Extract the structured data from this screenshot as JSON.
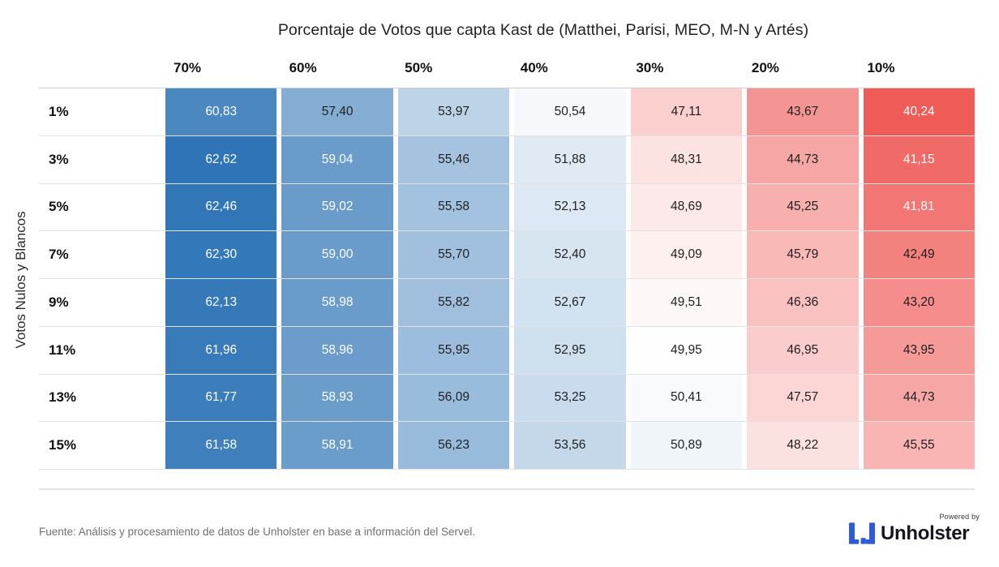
{
  "title": "Porcentaje de Votos que capta Kast de (Matthei, Parisi, MEO, M-N y Artés)",
  "y_axis_label": "Votos Nulos y Blancos",
  "chart_data": {
    "type": "heatmap",
    "title": "Porcentaje de Votos que capta Kast de (Matthei, Parisi, MEO, M-N y Artés)",
    "columns": [
      "70%",
      "60%",
      "50%",
      "40%",
      "30%",
      "20%",
      "10%"
    ],
    "rows": [
      "1%",
      "3%",
      "5%",
      "7%",
      "9%",
      "11%",
      "13%",
      "15%"
    ],
    "row_axis_label": "Votos Nulos y Blancos",
    "decimal_separator": ",",
    "values": [
      [
        60.83,
        57.4,
        53.97,
        50.54,
        47.11,
        43.67,
        40.24
      ],
      [
        62.62,
        59.04,
        55.46,
        51.88,
        48.31,
        44.73,
        41.15
      ],
      [
        62.46,
        59.02,
        55.58,
        52.13,
        48.69,
        45.25,
        41.81
      ],
      [
        62.3,
        59.0,
        55.7,
        52.4,
        49.09,
        45.79,
        42.49
      ],
      [
        62.13,
        58.98,
        55.82,
        52.67,
        49.51,
        46.36,
        43.2
      ],
      [
        61.96,
        58.96,
        55.95,
        52.95,
        49.95,
        46.95,
        43.95
      ],
      [
        61.77,
        58.93,
        56.09,
        53.25,
        50.41,
        47.57,
        44.73
      ],
      [
        61.58,
        58.91,
        56.23,
        53.56,
        50.89,
        48.22,
        45.55
      ]
    ],
    "color_scale": {
      "type": "diverging",
      "midpoint": 50,
      "mid_color": "#ffffff",
      "blue_end": {
        "value": 62.62,
        "color": "#2e74b6"
      },
      "red_end": {
        "value": 40.24,
        "color": "#ef5c58"
      },
      "white_text_min_blue": 58.9,
      "white_text_max_red": 41.9,
      "dark_text_color": "#1f1f1f",
      "light_text_color": "#ffffff"
    }
  },
  "footer": {
    "source": "Fuente: Análisis y procesamiento de datos de Unholster en base a información del Servel.",
    "powered_by": "Powered by",
    "brand": "Unholster",
    "brand_color": "#2e5bd7"
  }
}
